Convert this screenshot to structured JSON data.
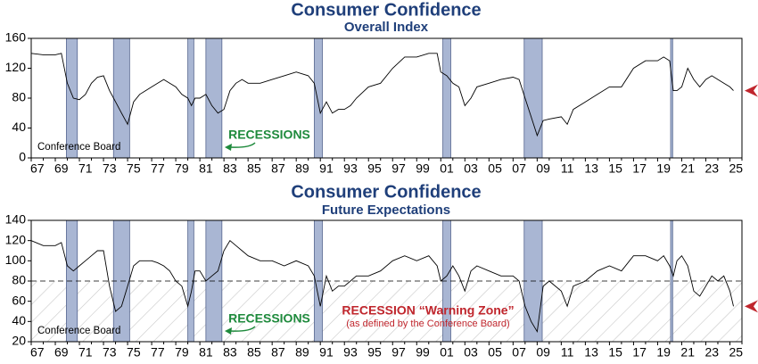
{
  "chart_data": [
    {
      "type": "line",
      "title": "Consumer Confidence",
      "subtitle": "Overall Index",
      "source": "Conference Board",
      "recession_label": "RECESSIONS",
      "recessions": [
        [
          1969.92,
          1970.83
        ],
        [
          1973.83,
          1975.17
        ],
        [
          1980.0,
          1980.5
        ],
        [
          1981.5,
          1982.83
        ],
        [
          1990.5,
          1991.17
        ],
        [
          2001.17,
          2001.83
        ],
        [
          2007.92,
          2009.42
        ],
        [
          2020.08,
          2020.25
        ]
      ],
      "x": [
        1967,
        1968,
        1969,
        1969.5,
        1970,
        1970.5,
        1971,
        1971.5,
        1972,
        1972.5,
        1973,
        1973.5,
        1974,
        1974.5,
        1975,
        1975.5,
        1976,
        1976.5,
        1977,
        1977.5,
        1978,
        1978.5,
        1979,
        1979.5,
        1980,
        1980.3,
        1980.6,
        1981,
        1981.5,
        1982,
        1982.5,
        1983,
        1983.5,
        1984,
        1984.5,
        1985,
        1986,
        1987,
        1988,
        1989,
        1990,
        1990.5,
        1991,
        1991.5,
        1992,
        1992.5,
        1993,
        1993.5,
        1994,
        1995,
        1996,
        1997,
        1998,
        1999,
        2000,
        2000.7,
        2001,
        2001.5,
        2002,
        2002.5,
        2003,
        2003.5,
        2004,
        2005,
        2006,
        2007,
        2007.5,
        2008,
        2008.5,
        2009,
        2009.5,
        2010,
        2011,
        2011.5,
        2012,
        2013,
        2014,
        2015,
        2016,
        2017,
        2018,
        2019,
        2019.5,
        2020,
        2020.3,
        2020.6,
        2021,
        2021.5,
        2022,
        2022.5,
        2023,
        2023.5,
        2024,
        2024.5,
        2025,
        2025.3
      ],
      "series": [
        {
          "color": "#000000",
          "values": [
            140,
            138,
            138,
            140,
            100,
            80,
            78,
            85,
            100,
            108,
            110,
            90,
            75,
            60,
            45,
            75,
            85,
            90,
            95,
            100,
            105,
            100,
            95,
            85,
            80,
            70,
            80,
            80,
            85,
            70,
            60,
            65,
            90,
            100,
            105,
            100,
            100,
            105,
            110,
            115,
            110,
            100,
            60,
            75,
            60,
            65,
            65,
            70,
            80,
            95,
            100,
            120,
            135,
            135,
            140,
            140,
            115,
            110,
            100,
            95,
            70,
            80,
            95,
            100,
            105,
            108,
            105,
            80,
            55,
            30,
            50,
            52,
            55,
            45,
            65,
            75,
            85,
            95,
            95,
            120,
            130,
            130,
            135,
            130,
            90,
            90,
            95,
            120,
            105,
            95,
            105,
            110,
            105,
            100,
            95,
            90
          ]
        }
      ],
      "xlim": [
        1967,
        2026
      ],
      "ylim": [
        0,
        160
      ],
      "yticks": [
        0,
        40,
        80,
        120,
        160
      ],
      "xticks": [
        {
          "value": 1967,
          "label": "67"
        },
        {
          "value": 1969,
          "label": "69"
        },
        {
          "value": 1971,
          "label": "71"
        },
        {
          "value": 1973,
          "label": "73"
        },
        {
          "value": 1975,
          "label": "75"
        },
        {
          "value": 1977,
          "label": "77"
        },
        {
          "value": 1979,
          "label": "79"
        },
        {
          "value": 1981,
          "label": "81"
        },
        {
          "value": 1983,
          "label": "83"
        },
        {
          "value": 1985,
          "label": "85"
        },
        {
          "value": 1987,
          "label": "87"
        },
        {
          "value": 1989,
          "label": "89"
        },
        {
          "value": 1991,
          "label": "91"
        },
        {
          "value": 1993,
          "label": "93"
        },
        {
          "value": 1995,
          "label": "95"
        },
        {
          "value": 1997,
          "label": "97"
        },
        {
          "value": 1999,
          "label": "99"
        },
        {
          "value": 2001,
          "label": "01"
        },
        {
          "value": 2003,
          "label": "03"
        },
        {
          "value": 2005,
          "label": "05"
        },
        {
          "value": 2007,
          "label": "07"
        },
        {
          "value": 2009,
          "label": "09"
        },
        {
          "value": 2011,
          "label": "11"
        },
        {
          "value": 2013,
          "label": "13"
        },
        {
          "value": 2015,
          "label": "15"
        },
        {
          "value": 2017,
          "label": "17"
        },
        {
          "value": 2019,
          "label": "19"
        },
        {
          "value": 2021,
          "label": "21"
        },
        {
          "value": 2023,
          "label": "23"
        },
        {
          "value": 2025,
          "label": "25"
        }
      ]
    },
    {
      "type": "line",
      "title": "Consumer Confidence",
      "subtitle": "Future Expectations",
      "source": "Conference Board",
      "recession_label": "RECESSIONS",
      "threshold": 80,
      "threshold_label": "RECESSION “Warning Zone”",
      "threshold_note": "(as defined by the Conference Board)",
      "recessions": [
        [
          1969.92,
          1970.83
        ],
        [
          1973.83,
          1975.17
        ],
        [
          1980.0,
          1980.5
        ],
        [
          1981.5,
          1982.83
        ],
        [
          1990.5,
          1991.17
        ],
        [
          2001.17,
          2001.83
        ],
        [
          2007.92,
          2009.42
        ],
        [
          2020.08,
          2020.25
        ]
      ],
      "x": [
        1967,
        1968,
        1969,
        1969.5,
        1970,
        1970.5,
        1971,
        1971.5,
        1972,
        1972.5,
        1973,
        1973.5,
        1974,
        1974.5,
        1975,
        1975.5,
        1976,
        1976.5,
        1977,
        1977.5,
        1978,
        1978.5,
        1979,
        1979.5,
        1980,
        1980.3,
        1980.6,
        1981,
        1981.5,
        1982,
        1982.5,
        1983,
        1983.5,
        1984,
        1984.5,
        1985,
        1986,
        1987,
        1988,
        1989,
        1990,
        1990.5,
        1991,
        1991.5,
        1992,
        1992.5,
        1993,
        1993.5,
        1994,
        1995,
        1996,
        1997,
        1998,
        1999,
        2000,
        2000.7,
        2001,
        2001.5,
        2002,
        2002.5,
        2003,
        2003.5,
        2004,
        2005,
        2006,
        2007,
        2007.5,
        2008,
        2008.5,
        2009,
        2009.5,
        2010,
        2011,
        2011.5,
        2012,
        2013,
        2014,
        2015,
        2016,
        2017,
        2018,
        2019,
        2019.5,
        2020,
        2020.3,
        2020.6,
        2021,
        2021.5,
        2022,
        2022.5,
        2023,
        2023.5,
        2024,
        2024.5,
        2025,
        2025.3
      ],
      "series": [
        {
          "color": "#000000",
          "values": [
            120,
            115,
            115,
            118,
            95,
            90,
            95,
            100,
            105,
            110,
            110,
            75,
            50,
            55,
            75,
            95,
            100,
            100,
            100,
            98,
            95,
            90,
            80,
            75,
            55,
            70,
            90,
            90,
            80,
            85,
            90,
            110,
            120,
            115,
            110,
            105,
            100,
            100,
            95,
            100,
            95,
            85,
            55,
            85,
            70,
            75,
            75,
            80,
            85,
            85,
            90,
            100,
            105,
            100,
            105,
            95,
            80,
            85,
            95,
            85,
            70,
            90,
            95,
            90,
            85,
            85,
            80,
            55,
            40,
            30,
            75,
            80,
            70,
            55,
            75,
            80,
            90,
            95,
            90,
            105,
            105,
            100,
            105,
            95,
            85,
            100,
            105,
            95,
            70,
            65,
            75,
            85,
            80,
            85,
            70,
            55
          ]
        }
      ],
      "xlim": [
        1967,
        2026
      ],
      "ylim": [
        20,
        140
      ],
      "yticks": [
        20,
        40,
        60,
        80,
        100,
        120,
        140
      ],
      "xticks": [
        {
          "value": 1967,
          "label": "67"
        },
        {
          "value": 1969,
          "label": "69"
        },
        {
          "value": 1971,
          "label": "71"
        },
        {
          "value": 1973,
          "label": "73"
        },
        {
          "value": 1975,
          "label": "75"
        },
        {
          "value": 1977,
          "label": "77"
        },
        {
          "value": 1979,
          "label": "79"
        },
        {
          "value": 1981,
          "label": "81"
        },
        {
          "value": 1983,
          "label": "83"
        },
        {
          "value": 1985,
          "label": "85"
        },
        {
          "value": 1987,
          "label": "87"
        },
        {
          "value": 1989,
          "label": "89"
        },
        {
          "value": 1991,
          "label": "91"
        },
        {
          "value": 1993,
          "label": "93"
        },
        {
          "value": 1995,
          "label": "95"
        },
        {
          "value": 1997,
          "label": "97"
        },
        {
          "value": 1999,
          "label": "99"
        },
        {
          "value": 2001,
          "label": "01"
        },
        {
          "value": 2003,
          "label": "03"
        },
        {
          "value": 2005,
          "label": "05"
        },
        {
          "value": 2007,
          "label": "07"
        },
        {
          "value": 2009,
          "label": "09"
        },
        {
          "value": 2011,
          "label": "11"
        },
        {
          "value": 2013,
          "label": "13"
        },
        {
          "value": 2015,
          "label": "15"
        },
        {
          "value": 2017,
          "label": "17"
        },
        {
          "value": 2019,
          "label": "19"
        },
        {
          "value": 2021,
          "label": "21"
        },
        {
          "value": 2023,
          "label": "23"
        },
        {
          "value": 2025,
          "label": "25"
        }
      ]
    }
  ]
}
